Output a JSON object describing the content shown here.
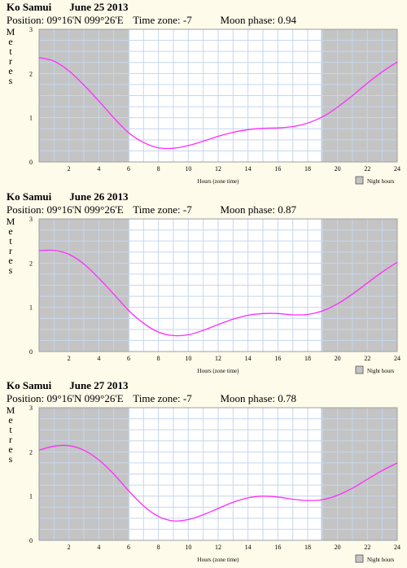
{
  "chart_data": [
    {
      "type": "line",
      "location": "Ko Samui",
      "date": "June 25 2013",
      "position_label": "Position:",
      "position_value": "09°16'N 099°26'E",
      "timezone_label": "Time zone:",
      "timezone_value": "-7",
      "moon_label": "Moon phase:",
      "moon_value": "0.94",
      "ylabel": "Metres",
      "xlabel": "Hours (zone time)",
      "legend": "Night hours",
      "xlim": [
        0,
        24
      ],
      "ylim": [
        0,
        3
      ],
      "xticks": [
        2,
        4,
        6,
        8,
        10,
        12,
        14,
        16,
        18,
        20,
        22,
        24
      ],
      "yticks": [
        0,
        1,
        2,
        3
      ],
      "night": [
        [
          0,
          6.05
        ],
        [
          18.9,
          24
        ]
      ],
      "x": [
        0,
        1,
        2,
        3,
        4,
        5,
        6,
        7,
        8,
        9,
        10,
        11,
        12,
        13,
        14,
        15,
        16,
        17,
        18,
        19,
        20,
        21,
        22,
        23,
        24
      ],
      "y": [
        2.36,
        2.28,
        2.06,
        1.74,
        1.38,
        1.0,
        0.66,
        0.44,
        0.32,
        0.31,
        0.37,
        0.47,
        0.58,
        0.67,
        0.73,
        0.76,
        0.77,
        0.8,
        0.88,
        1.02,
        1.24,
        1.5,
        1.78,
        2.04,
        2.26
      ],
      "colors": {
        "line": "#ff2bff",
        "night": "#c4c4c4",
        "grid": "#c6d6ee",
        "background": "#ffffff"
      }
    },
    {
      "type": "line",
      "location": "Ko Samui",
      "date": "June 26 2013",
      "position_label": "Position:",
      "position_value": "09°16'N 099°26'E",
      "timezone_label": "Time zone:",
      "timezone_value": "-7",
      "moon_label": "Moon phase:",
      "moon_value": "0.87",
      "ylabel": "Metres",
      "xlabel": "Hours (zone time)",
      "legend": "Night hours",
      "xlim": [
        0,
        24
      ],
      "ylim": [
        0,
        3
      ],
      "xticks": [
        2,
        4,
        6,
        8,
        10,
        12,
        14,
        16,
        18,
        20,
        22,
        24
      ],
      "yticks": [
        0,
        1,
        2,
        3
      ],
      "night": [
        [
          0,
          6.05
        ],
        [
          18.9,
          24
        ]
      ],
      "x": [
        0,
        1,
        2,
        3,
        4,
        5,
        6,
        7,
        8,
        9,
        10,
        11,
        12,
        13,
        14,
        15,
        16,
        17,
        18,
        19,
        20,
        21,
        22,
        23,
        24
      ],
      "y": [
        2.28,
        2.29,
        2.2,
        1.98,
        1.66,
        1.3,
        0.93,
        0.64,
        0.44,
        0.36,
        0.38,
        0.48,
        0.61,
        0.73,
        0.82,
        0.86,
        0.86,
        0.83,
        0.84,
        0.92,
        1.08,
        1.3,
        1.55,
        1.8,
        2.02
      ],
      "colors": {
        "line": "#ff2bff",
        "night": "#c4c4c4",
        "grid": "#c6d6ee",
        "background": "#ffffff"
      }
    },
    {
      "type": "line",
      "location": "Ko Samui",
      "date": "June 27 2013",
      "position_label": "Position:",
      "position_value": "09°16'N 099°26'E",
      "timezone_label": "Time zone:",
      "timezone_value": "-7",
      "moon_label": "Moon phase:",
      "moon_value": "0.78",
      "ylabel": "Metres",
      "xlabel": "Hours (zone time)",
      "legend": "Night hours",
      "xlim": [
        0,
        24
      ],
      "ylim": [
        0,
        3
      ],
      "xticks": [
        2,
        4,
        6,
        8,
        10,
        12,
        14,
        16,
        18,
        20,
        22,
        24
      ],
      "yticks": [
        0,
        1,
        2,
        3
      ],
      "night": [
        [
          0,
          6.05
        ],
        [
          18.9,
          24
        ]
      ],
      "x": [
        0,
        1,
        2,
        3,
        4,
        5,
        6,
        7,
        8,
        9,
        10,
        11,
        12,
        13,
        14,
        15,
        16,
        17,
        18,
        19,
        20,
        21,
        22,
        23,
        24
      ],
      "y": [
        2.04,
        2.13,
        2.14,
        2.04,
        1.82,
        1.5,
        1.12,
        0.78,
        0.54,
        0.44,
        0.47,
        0.58,
        0.72,
        0.86,
        0.96,
        1.0,
        0.98,
        0.93,
        0.9,
        0.92,
        1.02,
        1.18,
        1.38,
        1.58,
        1.75
      ],
      "colors": {
        "line": "#ff2bff",
        "night": "#c4c4c4",
        "grid": "#c6d6ee",
        "background": "#ffffff"
      }
    }
  ]
}
